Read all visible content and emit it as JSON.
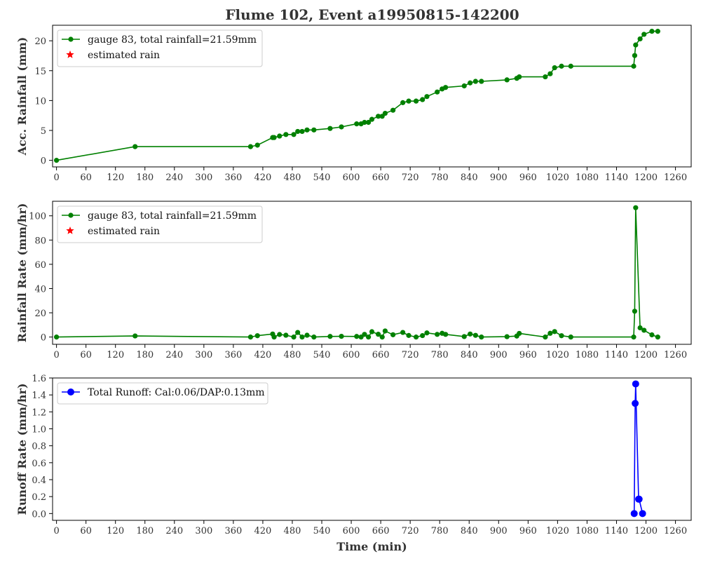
{
  "figure": {
    "title": "Flume 102, Event a19950815-142200"
  },
  "chart_data": [
    {
      "type": "line",
      "xlabel": "",
      "ylabel": "Acc. Rainfall (mm)",
      "xlim": [
        -8,
        1292
      ],
      "ylim": [
        -1.1,
        22.6
      ],
      "xticks": [
        0,
        60,
        120,
        180,
        240,
        300,
        360,
        420,
        480,
        540,
        600,
        660,
        720,
        780,
        840,
        900,
        960,
        1020,
        1080,
        1140,
        1200,
        1260
      ],
      "yticks": [
        0,
        5,
        10,
        15,
        20
      ],
      "color": "#008000",
      "legend": [
        "gauge 83, total rainfall=21.59mm",
        "estimated rain"
      ],
      "legend_colors": [
        "#008000",
        "#ff0000"
      ],
      "legend_position": "upper-left",
      "series": [
        {
          "name": "gauge 83, total rainfall=21.59mm",
          "x": [
            0,
            160,
            395,
            409,
            440,
            443,
            454,
            467,
            483,
            491,
            500,
            510,
            524,
            557,
            580,
            611,
            620,
            627,
            635,
            642,
            655,
            663,
            669,
            685,
            705,
            717,
            732,
            745,
            754,
            775,
            785,
            792,
            830,
            842,
            853,
            865,
            917,
            937,
            942,
            995,
            1005,
            1014,
            1028,
            1047,
            1175,
            1177,
            1179,
            1188,
            1196,
            1212,
            1224
          ],
          "y": [
            0,
            2.29,
            2.29,
            2.54,
            3.81,
            3.81,
            4.06,
            4.32,
            4.32,
            4.83,
            4.83,
            5.08,
            5.08,
            5.33,
            5.59,
            6.1,
            6.1,
            6.35,
            6.35,
            6.86,
            7.37,
            7.37,
            7.87,
            8.38,
            9.65,
            9.91,
            9.91,
            10.16,
            10.67,
            11.43,
            11.94,
            12.19,
            12.45,
            12.95,
            13.21,
            13.21,
            13.46,
            13.72,
            13.97,
            13.97,
            14.48,
            15.49,
            15.75,
            15.75,
            15.75,
            17.53,
            19.3,
            20.32,
            21.08,
            21.59,
            21.59
          ]
        }
      ]
    },
    {
      "type": "line",
      "xlabel": "",
      "ylabel": "Rainfall Rate (mm/hr)",
      "xlim": [
        -8,
        1292
      ],
      "ylim": [
        -6,
        112
      ],
      "xticks": [
        0,
        60,
        120,
        180,
        240,
        300,
        360,
        420,
        480,
        540,
        600,
        660,
        720,
        780,
        840,
        900,
        960,
        1020,
        1080,
        1140,
        1200,
        1260
      ],
      "yticks": [
        0,
        20,
        40,
        60,
        80,
        100
      ],
      "color": "#008000",
      "legend": [
        "gauge 83, total rainfall=21.59mm",
        "estimated rain"
      ],
      "legend_colors": [
        "#008000",
        "#ff0000"
      ],
      "legend_position": "upper-left",
      "series": [
        {
          "name": "gauge 83, total rainfall=21.59mm",
          "x": [
            0,
            160,
            395,
            409,
            440,
            443,
            454,
            467,
            483,
            491,
            500,
            510,
            524,
            557,
            580,
            611,
            620,
            627,
            635,
            642,
            655,
            663,
            669,
            685,
            705,
            717,
            732,
            745,
            754,
            775,
            785,
            792,
            830,
            842,
            853,
            865,
            917,
            937,
            942,
            995,
            1005,
            1014,
            1028,
            1047,
            1175,
            1177,
            1179,
            1188,
            1196,
            1212,
            1224
          ],
          "y": [
            0,
            0.9,
            0,
            1.1,
            2.5,
            0,
            2.1,
            1.5,
            0,
            3.8,
            0,
            1.5,
            0,
            0.5,
            0.6,
            0.5,
            0,
            2.2,
            0,
            4.4,
            2.3,
            0,
            5,
            1.9,
            3.8,
            1.3,
            0,
            1.2,
            3.4,
            2.2,
            3.1,
            2.2,
            0.4,
            2.5,
            1.4,
            0,
            0.3,
            0.8,
            3,
            0,
            3.1,
            4.5,
            1.1,
            0,
            0,
            21.3,
            106.7,
            7.6,
            5.6,
            1.8,
            0
          ]
        }
      ]
    },
    {
      "type": "line",
      "xlabel": "Time (min)",
      "ylabel": "Runoff Rate (mm/hr)",
      "xlim": [
        -8,
        1292
      ],
      "ylim": [
        -0.08,
        1.6
      ],
      "xticks": [
        0,
        60,
        120,
        180,
        240,
        300,
        360,
        420,
        480,
        540,
        600,
        660,
        720,
        780,
        840,
        900,
        960,
        1020,
        1080,
        1140,
        1200,
        1260
      ],
      "yticks": [
        0.0,
        0.2,
        0.4,
        0.6,
        0.8,
        1.0,
        1.2,
        1.4,
        1.6
      ],
      "color": "#0000ff",
      "legend": [
        "Total Runoff: Cal:0.06/DAP:0.13mm"
      ],
      "legend_colors": [
        "#0000ff"
      ],
      "legend_position": "upper-left",
      "series": [
        {
          "name": "Total Runoff: Cal:0.06/DAP:0.13mm",
          "x": [
            1176,
            1178,
            1179,
            1185,
            1186,
            1193
          ],
          "y": [
            0,
            1.3,
            1.53,
            0.17,
            0.17,
            0
          ]
        }
      ]
    }
  ]
}
